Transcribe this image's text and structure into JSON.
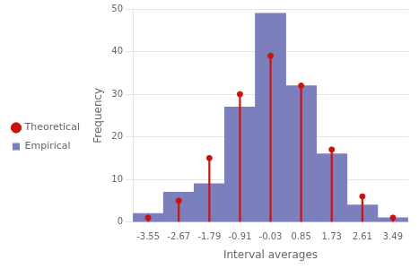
{
  "chart_data": {
    "type": "bar",
    "x": [
      -3.55,
      -2.67,
      -1.79,
      -0.91,
      -0.03,
      0.85,
      1.73,
      2.61,
      3.49
    ],
    "series": [
      {
        "name": "Empirical",
        "type": "bar",
        "color": "#7b7fbb",
        "values": [
          2,
          7,
          9,
          27,
          49,
          32,
          16,
          4,
          1
        ]
      },
      {
        "name": "Theoretical",
        "type": "stem",
        "color": "#cc1111",
        "marker": "circle",
        "values": [
          1,
          5,
          15,
          30,
          39,
          32,
          17,
          6,
          1
        ]
      }
    ],
    "xlabel": "Interval averages",
    "ylabel": "Frequency",
    "xlim": [
      -3.99,
      3.93
    ],
    "xticks": [
      -3.55,
      -2.67,
      -1.79,
      -0.91,
      -0.03,
      0.85,
      1.73,
      2.61,
      3.49
    ],
    "ylim": [
      0,
      50
    ],
    "yticks": [
      0,
      10,
      20,
      30,
      40,
      50
    ],
    "grid": "y",
    "legend": "left"
  }
}
